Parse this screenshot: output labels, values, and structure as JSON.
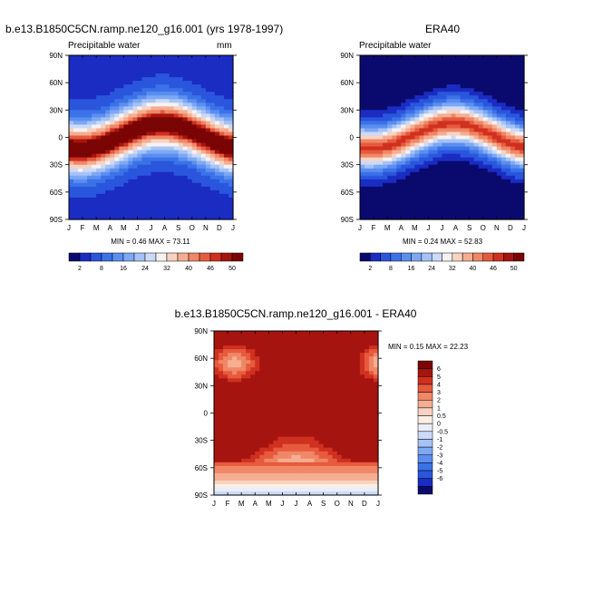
{
  "colors": {
    "precip_scale": [
      "#0a0a6e",
      "#1a2cc2",
      "#2a56dd",
      "#3b72e8",
      "#5b8ef0",
      "#7da8f3",
      "#a6c2f6",
      "#cbdaf8",
      "#f5f3f2",
      "#f8d3c2",
      "#f5ae92",
      "#f08766",
      "#e65a3e",
      "#d0301f",
      "#a61410",
      "#7a0505"
    ],
    "diff_scale": [
      "#0a0a6e",
      "#1a2cc2",
      "#2a56dd",
      "#3b72e8",
      "#5b8ef0",
      "#7da8f3",
      "#a6c2f6",
      "#cbdaf8",
      "#e9eef9",
      "#fbefe5",
      "#f8d3c2",
      "#f5ae92",
      "#f08766",
      "#e65a3e",
      "#d0301f",
      "#a61410",
      "#7a0505"
    ]
  },
  "chart_data": [
    {
      "type": "heatmap",
      "title": "b.e13.B1850C5CN.ramp.ne120_g16.001 (yrs 1978-1997)",
      "subtitle_left": "Precipitable water",
      "subtitle_right": "mm",
      "x_ticks": [
        "J",
        "F",
        "M",
        "A",
        "M",
        "J",
        "J",
        "A",
        "S",
        "O",
        "N",
        "D",
        "J"
      ],
      "y_ticks": [
        "90N",
        "60N",
        "30N",
        "0",
        "30S",
        "60S",
        "90S"
      ],
      "y_values": [
        90,
        60,
        30,
        0,
        -30,
        -60,
        -90
      ],
      "stats_label": "MIN =  0.46 MAX =  73.11",
      "min": 0.46,
      "max": 73.11,
      "levels": [
        2,
        4,
        8,
        12,
        16,
        20,
        24,
        28,
        32,
        36,
        40,
        44,
        46,
        48,
        50
      ],
      "colorbar_labels": [
        "2",
        "8",
        "16",
        "24",
        "32",
        "40",
        "46",
        "50"
      ],
      "field_params": {
        "peak": 52,
        "shift": 1.0,
        "width": 27,
        "polar": 3,
        "seasonal_amp": 14
      }
    },
    {
      "type": "heatmap",
      "title": "ERA40",
      "subtitle_left": "Precipitable water",
      "x_ticks": [
        "J",
        "F",
        "M",
        "A",
        "M",
        "J",
        "J",
        "A",
        "S",
        "O",
        "N",
        "D",
        "J"
      ],
      "y_ticks": [
        "90N",
        "60N",
        "30N",
        "0",
        "30S",
        "60S",
        "90S"
      ],
      "y_values": [
        90,
        60,
        30,
        0,
        -30,
        -60,
        -90
      ],
      "stats_label": "MIN =  0.24 MAX =  52.83",
      "min": 0.24,
      "max": 52.83,
      "levels": [
        2,
        4,
        8,
        12,
        16,
        20,
        24,
        28,
        32,
        36,
        40,
        44,
        46,
        48,
        50
      ],
      "colorbar_labels": [
        "2",
        "8",
        "16",
        "24",
        "32",
        "40",
        "46",
        "50"
      ],
      "field_params": {
        "peak": 46,
        "shift": 1.5,
        "width": 21,
        "polar": 1,
        "seasonal_amp": 14
      }
    },
    {
      "type": "heatmap",
      "title": "b.e13.B1850C5CN.ramp.ne120_g16.001 - ERA40",
      "x_ticks": [
        "J",
        "F",
        "M",
        "A",
        "M",
        "J",
        "J",
        "A",
        "S",
        "O",
        "N",
        "D",
        "J"
      ],
      "y_ticks": [
        "90N",
        "60N",
        "30N",
        "0",
        "30S",
        "60S",
        "90S"
      ],
      "y_values": [
        90,
        60,
        30,
        0,
        -30,
        -60,
        -90
      ],
      "stats_label": "MIN =  0.15 MAX =  22.23",
      "min": 0.15,
      "max": 22.23,
      "levels": [
        -6,
        -5,
        -4,
        -3,
        -2,
        -1,
        -0.5,
        0,
        0.5,
        1,
        2,
        3,
        4,
        5,
        6
      ],
      "colorbar_labels": [
        "6",
        "5",
        "4",
        "3",
        "2",
        "1",
        "0.5",
        "0",
        "-0.5",
        "-1",
        "-2",
        "-3",
        "-4",
        "-5",
        "-6"
      ]
    }
  ]
}
